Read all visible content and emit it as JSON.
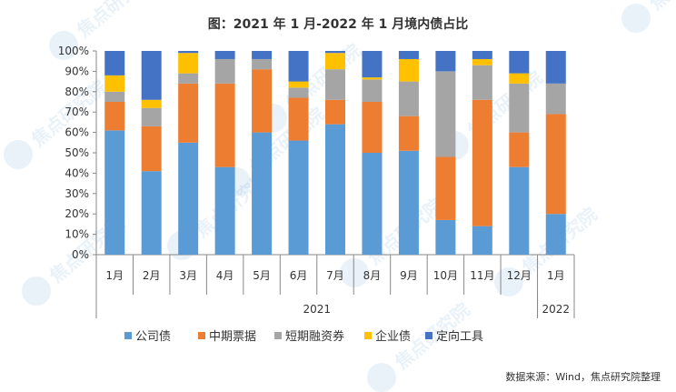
{
  "chart_data": {
    "type": "bar",
    "stacked": true,
    "percent": true,
    "title": "图：2021 年 1 月-2022 年 1 月境内债占比",
    "categories": [
      "1月",
      "2月",
      "3月",
      "4月",
      "5月",
      "6月",
      "7月",
      "8月",
      "9月",
      "10月",
      "11月",
      "12月",
      "1月"
    ],
    "x_groups": [
      {
        "label": "2021",
        "count": 12
      },
      {
        "label": "2022",
        "count": 1
      }
    ],
    "ylim": [
      0,
      100
    ],
    "yticks": [
      "0%",
      "10%",
      "20%",
      "30%",
      "40%",
      "50%",
      "60%",
      "70%",
      "80%",
      "90%",
      "100%"
    ],
    "grid": false,
    "legend_position": "bottom",
    "series": [
      {
        "name": "公司债",
        "color": "#5b9bd5",
        "values": [
          61,
          41,
          55,
          43,
          60,
          56,
          64,
          50,
          51,
          17,
          14,
          43,
          20
        ]
      },
      {
        "name": "中期票据",
        "color": "#ed7d31",
        "values": [
          14,
          22,
          29,
          41,
          31,
          21,
          12,
          25,
          17,
          31,
          62,
          17,
          49
        ]
      },
      {
        "name": "短期融资券",
        "color": "#a5a5a5",
        "values": [
          5,
          9,
          5,
          12,
          5,
          5,
          15,
          11,
          17,
          42,
          17,
          24,
          15
        ]
      },
      {
        "name": "企业债",
        "color": "#ffc000",
        "values": [
          8,
          4,
          10,
          0,
          0,
          3,
          8,
          1,
          11,
          0,
          3,
          5,
          0
        ]
      },
      {
        "name": "定向工具",
        "color": "#4472c4",
        "values": [
          12,
          24,
          1,
          4,
          4,
          15,
          1,
          13,
          4,
          10,
          4,
          11,
          16
        ]
      }
    ],
    "source": "数据来源：Wind，焦点研究院整理"
  },
  "watermark": "焦点研究院"
}
